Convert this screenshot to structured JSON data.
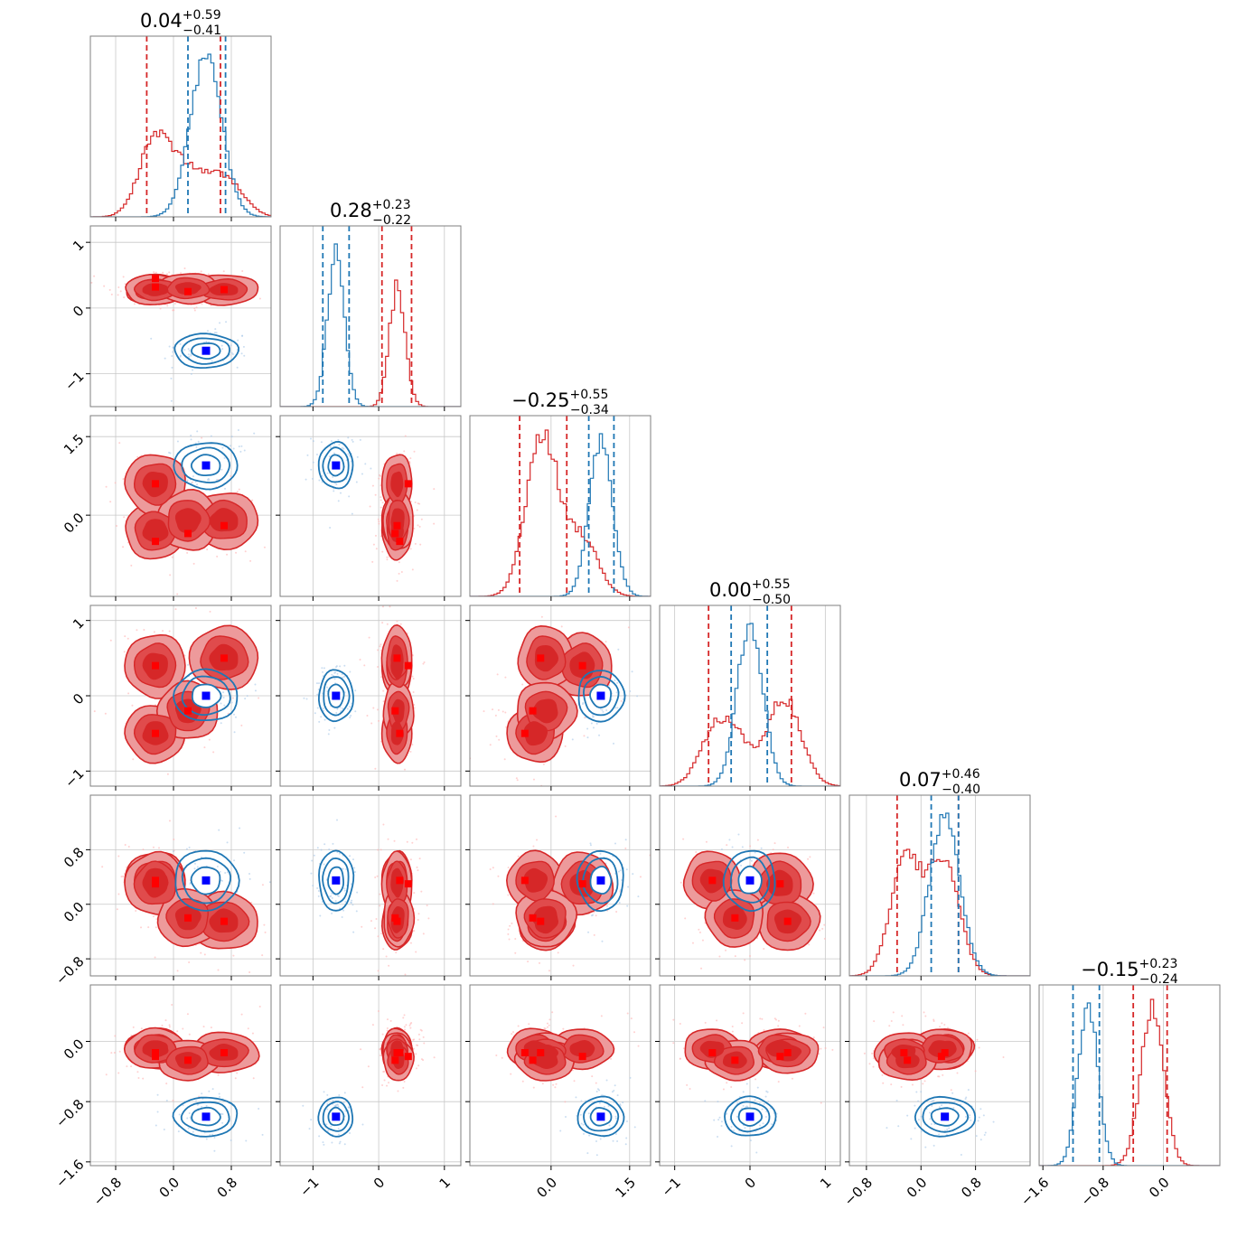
{
  "chart_data": {
    "type": "corner",
    "n_params": 6,
    "param_ranges": [
      [
        -1.15,
        1.35
      ],
      [
        -1.5,
        1.25
      ],
      [
        -1.55,
        1.9
      ],
      [
        -1.2,
        1.2
      ],
      [
        -1.05,
        1.6
      ],
      [
        -1.65,
        0.75
      ]
    ],
    "ticks": [
      [
        "−0.8",
        "0.0",
        "0.8"
      ],
      [
        "−1",
        "0",
        "1"
      ],
      [
        "0.0",
        "1.5"
      ],
      [
        "−1",
        "0",
        "1"
      ],
      [
        "−0.8",
        "0.0",
        "0.8"
      ],
      [
        "−1.6",
        "−0.8",
        "0.0"
      ]
    ],
    "tick_values": [
      [
        -0.8,
        0.0,
        0.8
      ],
      [
        -1,
        0,
        1
      ],
      [
        0.0,
        1.5
      ],
      [
        -1,
        0,
        1
      ],
      [
        -0.8,
        0.0,
        0.8
      ],
      [
        -1.6,
        -0.8,
        0.0
      ]
    ],
    "titles": [
      {
        "median": "0.04",
        "plus": "+0.59",
        "minus": "−0.41"
      },
      {
        "median": "0.28",
        "plus": "+0.23",
        "minus": "−0.22"
      },
      {
        "median": "−0.25",
        "plus": "+0.55",
        "minus": "−0.34"
      },
      {
        "median": "0.00",
        "plus": "+0.55",
        "minus": "−0.50"
      },
      {
        "median": "0.07",
        "plus": "+0.46",
        "minus": "−0.40"
      },
      {
        "median": "−0.15",
        "plus": "+0.23",
        "minus": "−0.24"
      }
    ],
    "series": [
      {
        "color": "#1f77b4",
        "marker_color": "#0000ff",
        "mean": [
          0.45,
          -0.65,
          0.95,
          0.0,
          0.35,
          -1.0
        ],
        "std": [
          0.22,
          0.13,
          0.22,
          0.17,
          0.22,
          0.13
        ],
        "quantiles": [
          [
            0.2,
            0.72
          ],
          [
            -0.85,
            -0.45
          ],
          [
            0.72,
            1.2
          ],
          [
            -0.25,
            0.23
          ],
          [
            0.15,
            0.55
          ],
          [
            -1.2,
            -0.85
          ]
        ],
        "markers": [
          [
            0.45,
            -0.65,
            0.95,
            0.0,
            0.35,
            -1.0
          ]
        ]
      },
      {
        "color": "#d62728",
        "marker_color": "#ff0000",
        "quantiles": [
          [
            -0.37,
            0.65
          ],
          [
            0.05,
            0.5
          ],
          [
            -0.6,
            0.3
          ],
          [
            -0.55,
            0.55
          ],
          [
            -0.35,
            0.55
          ],
          [
            -0.4,
            0.05
          ]
        ],
        "modes": [
          {
            "mean": [
              -0.25,
              0.28,
              -0.3,
              -0.5,
              0.35,
              -0.1
            ],
            "std": [
              0.22,
              0.12,
              0.28,
              0.2,
              0.22,
              0.14
            ]
          },
          {
            "mean": [
              -0.25,
              0.28,
              0.6,
              0.4,
              0.3,
              -0.1
            ],
            "std": [
              0.22,
              0.12,
              0.3,
              0.22,
              0.24,
              0.14
            ]
          },
          {
            "mean": [
              0.7,
              0.28,
              -0.1,
              0.5,
              -0.25,
              -0.15
            ],
            "std": [
              0.25,
              0.12,
              0.28,
              0.22,
              0.22,
              0.14
            ]
          },
          {
            "mean": [
              0.2,
              0.3,
              -0.1,
              -0.2,
              -0.2,
              -0.25
            ],
            "std": [
              0.22,
              0.12,
              0.3,
              0.2,
              0.22,
              0.14
            ]
          }
        ],
        "markers": [
          [
            -0.25,
            0.32,
            -0.5,
            -0.5,
            0.35,
            -0.15
          ],
          [
            -0.25,
            0.45,
            0.6,
            0.4,
            0.3,
            -0.2
          ],
          [
            0.7,
            0.28,
            -0.2,
            0.5,
            -0.25,
            -0.15
          ],
          [
            0.2,
            0.25,
            -0.35,
            -0.2,
            -0.2,
            -0.25
          ]
        ]
      }
    ]
  }
}
